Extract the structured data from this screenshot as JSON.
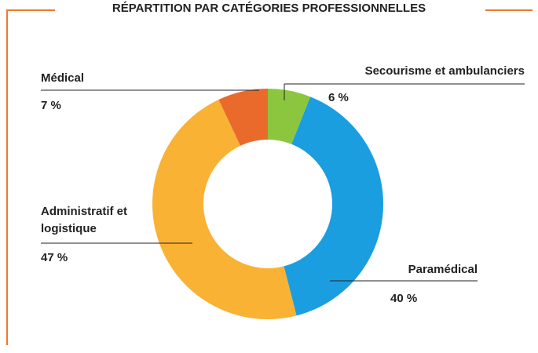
{
  "chart_data": {
    "type": "donut",
    "title": "RÉPARTITION PAR CATÉGORIES PROFESSIONNELLES",
    "categories": [
      "Secourisme et ambulanciers",
      "Paramédical",
      "Administratif et logistique",
      "Médical"
    ],
    "values": [
      6,
      40,
      47,
      7
    ],
    "value_labels": [
      "6 %",
      "40 %",
      "47 %",
      "7 %"
    ],
    "colors": [
      "#8cc63f",
      "#1b9ee0",
      "#f9b234",
      "#ea6a2c"
    ]
  }
}
